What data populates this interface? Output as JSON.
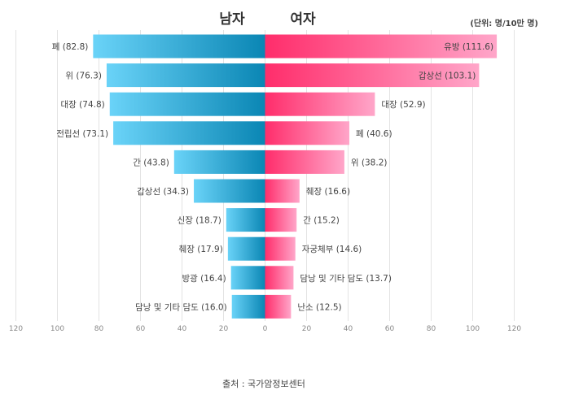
{
  "chart_data": {
    "type": "bar",
    "orientation": "horizontal-butterfly",
    "left_title": "남자",
    "right_title": "여자",
    "unit_note": "(단위: 명/10만 명)",
    "source": "출처 : 국가암정보센터",
    "xlim": [
      -120,
      120
    ],
    "x_ticks": [
      "120",
      "100",
      "80",
      "60",
      "40",
      "20",
      "0",
      "20",
      "40",
      "60",
      "80",
      "100",
      "120"
    ],
    "grid": true,
    "series": [
      {
        "name": "남자",
        "side": "left",
        "colors": [
          "#6ad3f8",
          "#0a86b4"
        ],
        "items": [
          {
            "label": "폐 (82.8)",
            "value": 82.8
          },
          {
            "label": "위 (76.3)",
            "value": 76.3
          },
          {
            "label": "대장 (74.8)",
            "value": 74.8
          },
          {
            "label": "전립선 (73.1)",
            "value": 73.1
          },
          {
            "label": "간 (43.8)",
            "value": 43.8
          },
          {
            "label": "갑상선 (34.3)",
            "value": 34.3
          },
          {
            "label": "신장 (18.7)",
            "value": 18.7
          },
          {
            "label": "췌장 (17.9)",
            "value": 17.9
          },
          {
            "label": "방광 (16.4)",
            "value": 16.4
          },
          {
            "label": "담낭 및 기타 담도 (16.0)",
            "value": 16.0
          }
        ]
      },
      {
        "name": "여자",
        "side": "right",
        "colors": [
          "#ff2d6b",
          "#ffa6c9"
        ],
        "items": [
          {
            "label": "유방 (111.6)",
            "value": 111.6
          },
          {
            "label": "갑상선 (103.1)",
            "value": 103.1
          },
          {
            "label": "대장 (52.9)",
            "value": 52.9
          },
          {
            "label": "폐 (40.6)",
            "value": 40.6
          },
          {
            "label": "위 (38.2)",
            "value": 38.2
          },
          {
            "label": "췌장 (16.6)",
            "value": 16.6
          },
          {
            "label": "간 (15.2)",
            "value": 15.2
          },
          {
            "label": "자궁체부 (14.6)",
            "value": 14.6
          },
          {
            "label": "담낭 및 기타 담도 (13.7)",
            "value": 13.7
          },
          {
            "label": "난소 (12.5)",
            "value": 12.5
          }
        ]
      }
    ]
  }
}
